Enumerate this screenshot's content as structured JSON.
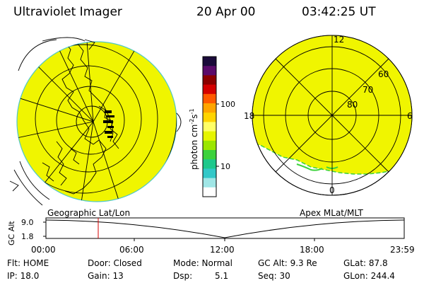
{
  "header": {
    "title": "Ultraviolet Imager",
    "date": "20 Apr 00",
    "time": "03:42:25 UT"
  },
  "left_panel": {
    "label": "Geographic Lat/Lon"
  },
  "right_panel": {
    "label": "Apex MLat/MLT",
    "lat_labels": [
      "60",
      "70",
      "80"
    ],
    "mlt_labels": [
      "12",
      "18",
      "6",
      "0"
    ]
  },
  "colorbar": {
    "unit_main": "photon cm",
    "unit_sup1": "-2",
    "unit_mid": "s",
    "unit_sup2": "-1",
    "ticks": [
      "100",
      "10"
    ],
    "colors": [
      "#1a0a3a",
      "#5a0a6a",
      "#8b0000",
      "#d40000",
      "#ff5a00",
      "#ffa500",
      "#ffd400",
      "#ffff66",
      "#e6f500",
      "#9be600",
      "#3cd23c",
      "#1ec88c",
      "#32c8c8",
      "#a0e6e6",
      "#ffffff"
    ]
  },
  "image_color": "#f0f500",
  "timeline": {
    "ylabel": "GC Alt",
    "yticks": [
      "9.0",
      "1.8"
    ],
    "xticks": [
      "00:00",
      "06:00",
      "12:00",
      "18:00",
      "23:59"
    ]
  },
  "info": {
    "flt": "Flt: HOME",
    "ip": "IP: 18.0",
    "door": "Door: Closed",
    "gain": "Gain: 13",
    "mode": "Mode: Normal",
    "dsp": "Dsp:",
    "dsp_val": "5.1",
    "gc_alt": "GC Alt: 9.3 Re",
    "seq": "Seq: 30",
    "glat": "GLat: 87.8",
    "glon": "GLon: 244.4"
  }
}
